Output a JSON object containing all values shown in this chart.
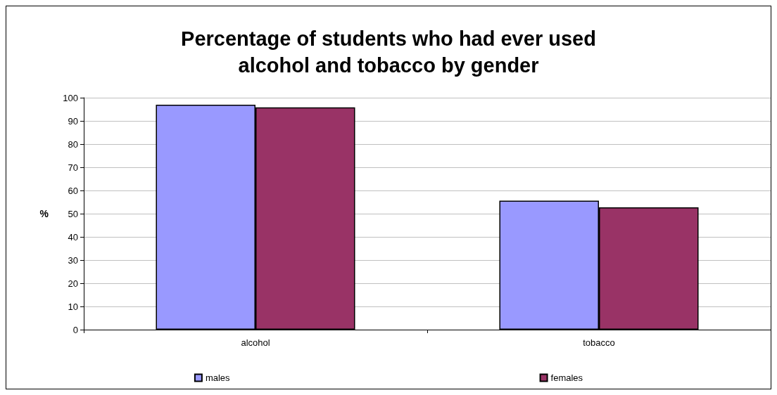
{
  "chart_data": {
    "type": "bar",
    "title": "Percentage of students who had ever used\nalcohol and tobacco by gender",
    "ylabel": "%",
    "categories": [
      "alcohol",
      "tobacco"
    ],
    "series": [
      {
        "name": "males",
        "color": "#9999ff",
        "values": [
          97,
          55.6
        ]
      },
      {
        "name": "females",
        "color": "#993366",
        "values": [
          95.8,
          52.7
        ]
      }
    ],
    "ylim": [
      0,
      100
    ],
    "yticks": [
      0,
      10,
      20,
      30,
      40,
      50,
      60,
      70,
      80,
      90,
      100
    ],
    "grid": "y",
    "legend": "bottom"
  }
}
